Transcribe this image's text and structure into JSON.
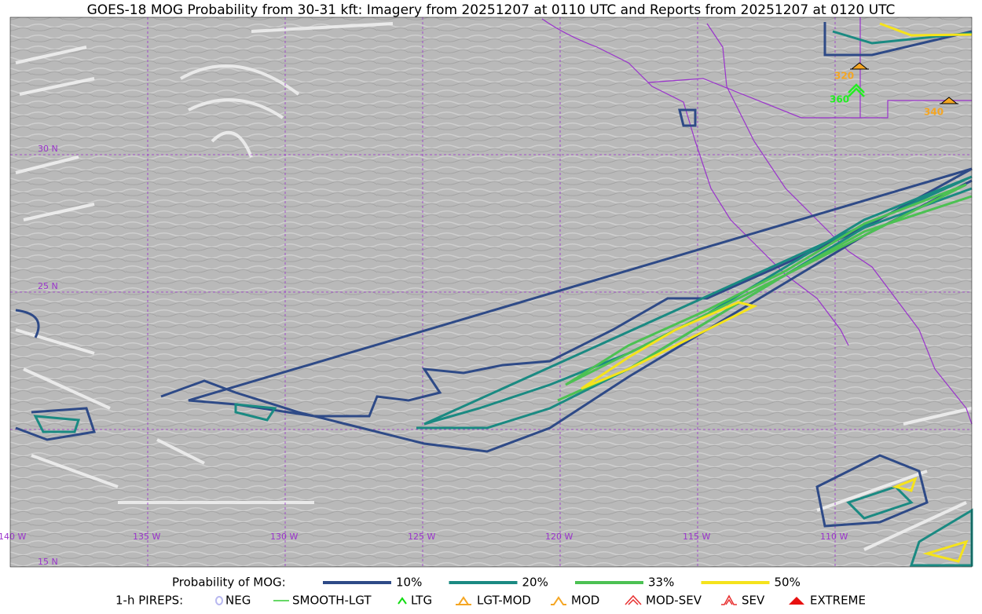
{
  "title": "GOES-18 MOG Probability from 30-31 kft: Imagery from 20251207 at 0110 UTC and Reports from 20251207 at 0120 UTC",
  "map": {
    "lat_labels": [
      "30 N",
      "25 N",
      "15 N"
    ],
    "lon_labels": [
      "140 W",
      "135 W",
      "130 W",
      "125 W",
      "120 W",
      "115 W",
      "110 W"
    ],
    "report_labels": [
      {
        "label": "320",
        "color": "#f5a623"
      },
      {
        "label": "360",
        "color": "#22ee22"
      },
      {
        "label": "340",
        "color": "#f5a623"
      }
    ]
  },
  "legend": {
    "probability": {
      "label": "Probability of MOG:",
      "items": [
        {
          "label": "10%",
          "color": "#2e4a87"
        },
        {
          "label": "20%",
          "color": "#1a8a82"
        },
        {
          "label": "33%",
          "color": "#4cc153"
        },
        {
          "label": "50%",
          "color": "#f5e31c"
        }
      ]
    },
    "pireps": {
      "label": "1-h PIREPS:",
      "items": [
        {
          "label": "NEG",
          "color": "#b8b8f0"
        },
        {
          "label": "SMOOTH-LGT",
          "color": "#33cc33"
        },
        {
          "label": "LTG",
          "color": "#11dd11"
        },
        {
          "label": "LGT-MOD",
          "color": "#f5a623"
        },
        {
          "label": "MOD",
          "color": "#f5a623"
        },
        {
          "label": "MOD-SEV",
          "color": "#e83030"
        },
        {
          "label": "SEV",
          "color": "#e83030"
        },
        {
          "label": "EXTREME",
          "color": "#e81010"
        }
      ]
    }
  }
}
